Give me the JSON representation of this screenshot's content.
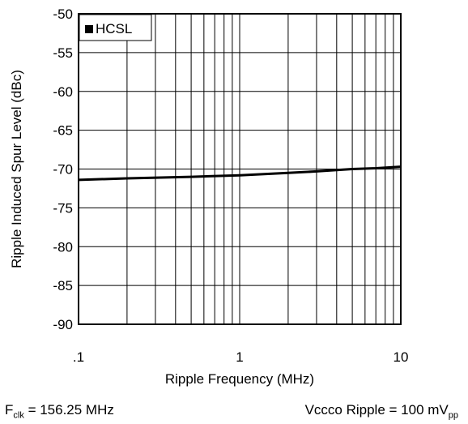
{
  "chart_data": {
    "type": "line",
    "title": "",
    "xlabel": "Ripple Frequency (MHz)",
    "ylabel": "Ripple Induced Spur Level (dBc)",
    "x_scale": "log",
    "xlim": [
      0.1,
      10
    ],
    "ylim": [
      -90,
      -50
    ],
    "x_tick_labels": [
      ".1",
      "1",
      "10"
    ],
    "y_tick_labels": [
      "-50",
      "-55",
      "-60",
      "-65",
      "-70",
      "-75",
      "-80",
      "-85",
      "-90"
    ],
    "grid": true,
    "legend_position": "top-left",
    "series": [
      {
        "name": "HCSL",
        "color": "#000000",
        "x": [
          0.1,
          0.2,
          0.5,
          1,
          2,
          3,
          5,
          7,
          10
        ],
        "y": [
          -71.4,
          -71.2,
          -71.0,
          -70.8,
          -70.5,
          -70.3,
          -70.0,
          -69.9,
          -69.7
        ]
      }
    ]
  },
  "footnotes": {
    "fclk_prefix": "F",
    "fclk_sub": "clk",
    "fclk_value": " = 156.25 MHz",
    "ripple_prefix": "Vccco Ripple = 100 mV",
    "ripple_sub": "pp"
  }
}
